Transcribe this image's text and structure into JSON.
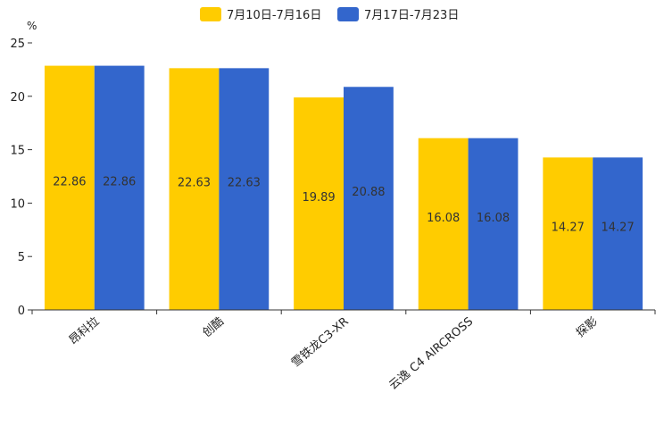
{
  "chart_data": {
    "type": "bar",
    "title": "",
    "xlabel": "",
    "ylabel": "%",
    "ylim": [
      0,
      25
    ],
    "yticks": [
      0,
      5,
      10,
      15,
      20,
      25
    ],
    "grid": false,
    "legend_position": "top-center",
    "categories": [
      "昂科拉",
      "创酷",
      "雪铁龙C3-XR",
      "云逸 C4 AIRCROSS",
      "探影"
    ],
    "series": [
      {
        "name": "7月10日-7月16日",
        "color": "#FFCC00",
        "values": [
          22.86,
          22.63,
          19.89,
          16.08,
          14.27
        ]
      },
      {
        "name": "7月17日-7月23日",
        "color": "#3366CC",
        "values": [
          22.86,
          22.63,
          20.88,
          16.08,
          14.27
        ]
      }
    ]
  }
}
